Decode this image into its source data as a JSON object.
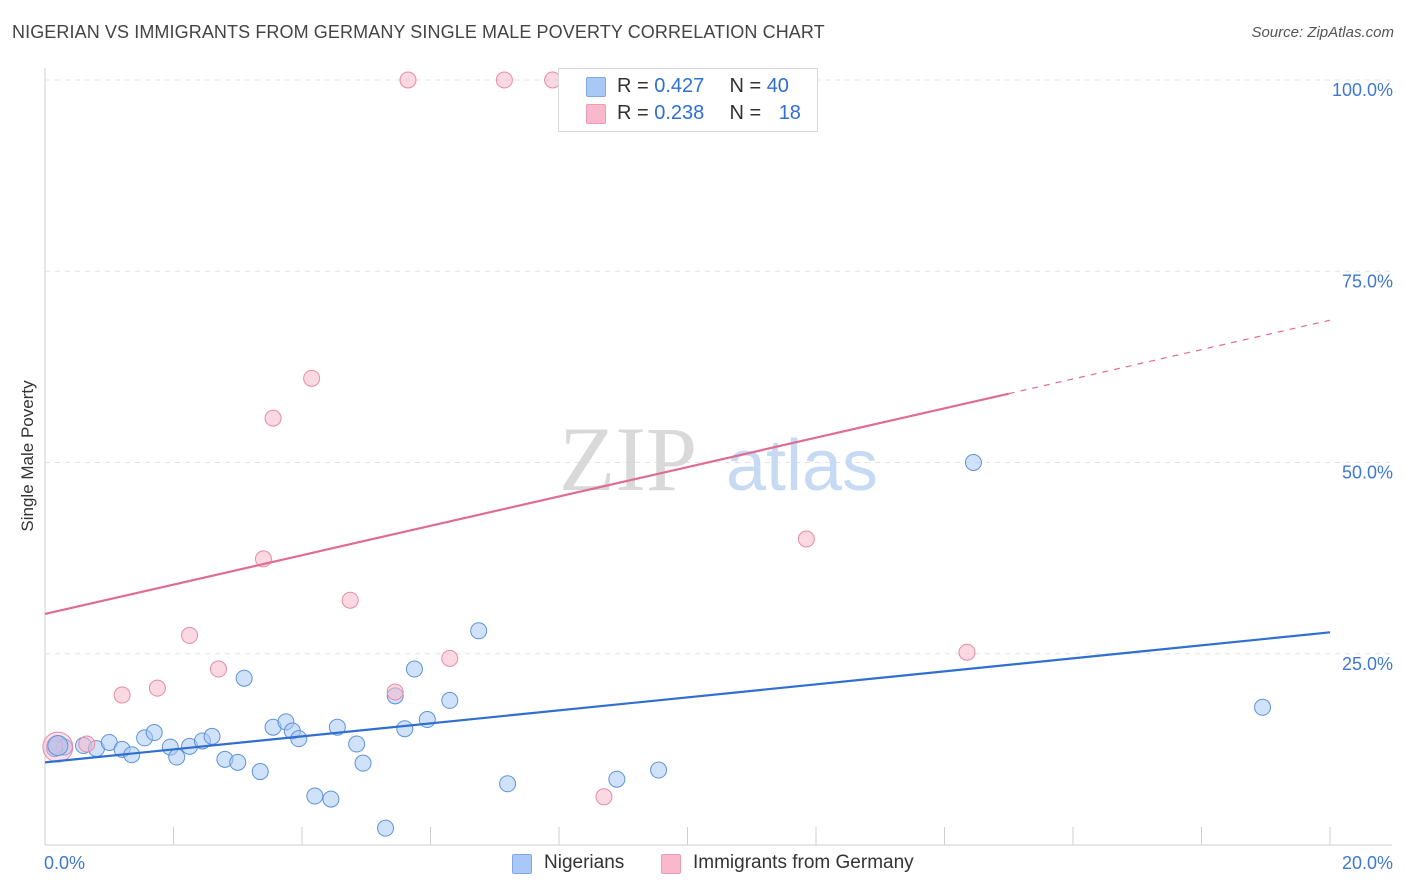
{
  "title": "NIGERIAN VS IMMIGRANTS FROM GERMANY SINGLE MALE POVERTY CORRELATION CHART",
  "source": "Source: ZipAtlas.com",
  "watermark": {
    "zip": "ZIP",
    "atlas": "atlas"
  },
  "stats_box": {
    "rows": [
      {
        "r_label": "R = ",
        "r_value": "0.427",
        "n_label": "N = ",
        "n_value": "40",
        "color": "#a9c8f5"
      },
      {
        "r_label": "R = ",
        "r_value": "0.238",
        "n_label": "N = ",
        "n_value": "18",
        "color": "#f7b9cb"
      }
    ]
  },
  "legend": {
    "items": [
      {
        "label": "Nigerians",
        "color": "#a9c8f5"
      },
      {
        "label": "Immigrants from Germany",
        "color": "#f7b9cb"
      }
    ]
  },
  "chart_data": {
    "type": "scatter",
    "title": "NIGERIAN VS IMMIGRANTS FROM GERMANY SINGLE MALE POVERTY CORRELATION CHART",
    "xlabel": "",
    "ylabel": "Single Male Poverty",
    "xlim": [
      0,
      20
    ],
    "ylim": [
      0,
      100
    ],
    "x_unit": "%",
    "y_unit": "%",
    "x_tick_labels": [
      "0.0%",
      "20.0%"
    ],
    "y_tick_labels": [
      {
        "value": 100,
        "label": "100.0%"
      },
      {
        "value": 75,
        "label": "75.0%"
      },
      {
        "value": 50,
        "label": "50.0%"
      },
      {
        "value": 25,
        "label": "25.0%"
      }
    ],
    "grid": true,
    "series": [
      {
        "name": "Nigerians",
        "color": "#a9c8f5",
        "stroke": "#5e93d9",
        "trend_color": "#2f6fcf",
        "R": 0.427,
        "N": 40,
        "points": [
          [
            0.2,
            13.2
          ],
          [
            0.3,
            12.8
          ],
          [
            0.6,
            13.0
          ],
          [
            0.8,
            12.6
          ],
          [
            1.0,
            13.4
          ],
          [
            1.2,
            12.5
          ],
          [
            1.35,
            11.8
          ],
          [
            1.55,
            14.0
          ],
          [
            1.7,
            14.7
          ],
          [
            1.95,
            12.8
          ],
          [
            2.05,
            11.5
          ],
          [
            2.25,
            12.9
          ],
          [
            2.45,
            13.6
          ],
          [
            2.6,
            14.2
          ],
          [
            2.8,
            11.2
          ],
          [
            3.0,
            10.8
          ],
          [
            3.1,
            21.8
          ],
          [
            3.35,
            9.6
          ],
          [
            3.55,
            15.4
          ],
          [
            3.75,
            16.1
          ],
          [
            3.85,
            14.9
          ],
          [
            3.95,
            13.9
          ],
          [
            4.2,
            6.4
          ],
          [
            4.45,
            6.0
          ],
          [
            4.55,
            15.4
          ],
          [
            4.85,
            13.2
          ],
          [
            4.95,
            10.7
          ],
          [
            5.3,
            2.2
          ],
          [
            5.45,
            19.5
          ],
          [
            5.6,
            15.2
          ],
          [
            5.75,
            23.0
          ],
          [
            5.95,
            16.4
          ],
          [
            6.3,
            18.9
          ],
          [
            6.75,
            28.0
          ],
          [
            7.2,
            8.0
          ],
          [
            8.9,
            8.6
          ],
          [
            9.55,
            9.8
          ],
          [
            14.45,
            50.0
          ],
          [
            18.95,
            18.0
          ],
          [
            0.15,
            12.6
          ]
        ],
        "trend": {
          "x": [
            0,
            20
          ],
          "y": [
            10.8,
            27.8
          ]
        }
      },
      {
        "name": "Immigrants from Germany",
        "color": "#f7b9cb",
        "stroke": "#e88aa5",
        "trend_color": "#e06b93",
        "R": 0.238,
        "N": 18,
        "points": [
          [
            0.15,
            13.0
          ],
          [
            0.65,
            13.2
          ],
          [
            1.2,
            19.6
          ],
          [
            1.75,
            20.5
          ],
          [
            2.25,
            27.4
          ],
          [
            2.7,
            23.0
          ],
          [
            3.4,
            37.4
          ],
          [
            3.55,
            55.8
          ],
          [
            4.15,
            61.0
          ],
          [
            4.75,
            32.0
          ],
          [
            5.45,
            20.0
          ],
          [
            5.65,
            100.0
          ],
          [
            6.3,
            24.4
          ],
          [
            7.15,
            100.0
          ],
          [
            7.9,
            100.0
          ],
          [
            8.7,
            6.3
          ],
          [
            11.85,
            40.0
          ],
          [
            14.35,
            25.2
          ]
        ],
        "trend": {
          "x": [
            0,
            15
          ],
          "y": [
            30.2,
            59.0
          ]
        },
        "trend_dashed": {
          "x": [
            15,
            20
          ],
          "y": [
            59.0,
            68.6
          ]
        }
      }
    ]
  }
}
